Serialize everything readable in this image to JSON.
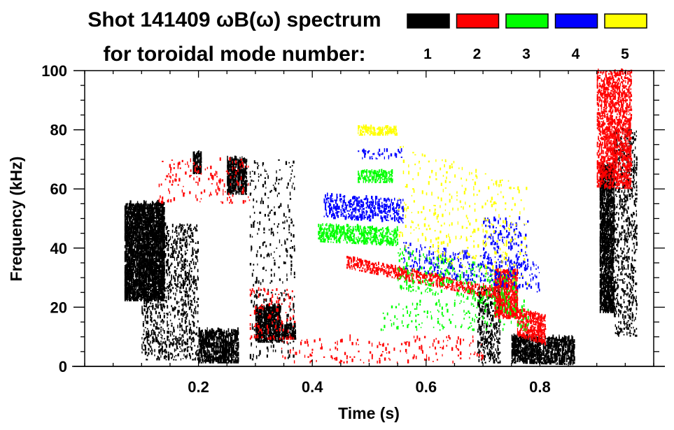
{
  "chart_data": {
    "type": "heatmap",
    "title_line1": "Shot 141409 ωB(ω) spectrum",
    "title_line2": "for toroidal mode number:",
    "xlabel": "Time (s)",
    "ylabel": "Frequency (kHz)",
    "xlim": [
      0.0,
      1.0
    ],
    "ylim": [
      0,
      100
    ],
    "x_major_ticks": [
      0.2,
      0.4,
      0.6,
      0.8
    ],
    "x_tick_labels": [
      "0.2",
      "0.4",
      "0.6",
      "0.8"
    ],
    "x_minor_step": 0.05,
    "y_major_ticks": [
      0,
      20,
      40,
      60,
      80,
      100
    ],
    "y_tick_labels": [
      "0",
      "20",
      "40",
      "60",
      "80",
      "100"
    ],
    "y_minor_step": 5,
    "grid": false,
    "legend": {
      "placement": "top-right",
      "entries": [
        {
          "label": "1",
          "n": 1,
          "color": "#000000"
        },
        {
          "label": "2",
          "n": 2,
          "color": "#ff0000"
        },
        {
          "label": "3",
          "n": 3,
          "color": "#00ff00"
        },
        {
          "label": "4",
          "n": 4,
          "color": "#0000ff"
        },
        {
          "label": "5",
          "n": 5,
          "color": "#ffff00"
        }
      ]
    },
    "features": [
      {
        "n": 1,
        "name": "n1-blob-early",
        "t": [
          0.07,
          0.14
        ],
        "f": [
          22,
          55
        ],
        "density": 0.75
      },
      {
        "n": 1,
        "name": "n1-streaks-early",
        "t": [
          0.1,
          0.2
        ],
        "f": [
          2,
          48
        ],
        "density": 0.18
      },
      {
        "n": 1,
        "name": "n1-low-0.2",
        "t": [
          0.2,
          0.27
        ],
        "f": [
          1,
          12
        ],
        "density": 0.6
      },
      {
        "n": 1,
        "name": "n1-patch-0.2-70",
        "t": [
          0.19,
          0.205
        ],
        "f": [
          65,
          72
        ],
        "density": 0.7
      },
      {
        "n": 1,
        "name": "n1-patch-0.25-65",
        "t": [
          0.25,
          0.285
        ],
        "f": [
          58,
          70
        ],
        "density": 0.6
      },
      {
        "n": 1,
        "name": "n1-low-0.32",
        "t": [
          0.3,
          0.345
        ],
        "f": [
          8,
          20
        ],
        "density": 0.7
      },
      {
        "n": 1,
        "name": "n1-low-0.35",
        "t": [
          0.345,
          0.37
        ],
        "f": [
          9,
          14
        ],
        "density": 0.6
      },
      {
        "n": 1,
        "name": "n1-streaks-0.3",
        "t": [
          0.29,
          0.37
        ],
        "f": [
          2,
          70
        ],
        "density": 0.05
      },
      {
        "n": 1,
        "name": "n1-late-0.7",
        "t": [
          0.69,
          0.73
        ],
        "f": [
          1,
          27
        ],
        "density": 0.25
      },
      {
        "n": 1,
        "name": "n1-late-ramp",
        "t": [
          0.75,
          0.86
        ],
        "f": [
          1,
          10
        ],
        "density": 0.55,
        "slope": -6
      },
      {
        "n": 1,
        "name": "n1-edge-0.91",
        "t": [
          0.905,
          0.93
        ],
        "f": [
          18,
          68
        ],
        "density": 0.65
      },
      {
        "n": 1,
        "name": "n1-edge-0.93",
        "t": [
          0.93,
          0.97
        ],
        "f": [
          10,
          80
        ],
        "density": 0.2
      },
      {
        "n": 2,
        "name": "n2-early-bits",
        "t": [
          0.13,
          0.29
        ],
        "f": [
          55,
          70
        ],
        "density": 0.05
      },
      {
        "n": 2,
        "name": "n2-0.3",
        "t": [
          0.29,
          0.37
        ],
        "f": [
          9,
          26
        ],
        "density": 0.08
      },
      {
        "n": 2,
        "name": "n2-band",
        "t": [
          0.46,
          0.72
        ],
        "f": [
          33,
          37
        ],
        "density": 0.35,
        "slope": -40
      },
      {
        "n": 2,
        "name": "n2-late-blob",
        "t": [
          0.72,
          0.76
        ],
        "f": [
          16,
          32
        ],
        "density": 0.6
      },
      {
        "n": 2,
        "name": "n2-late-trail",
        "t": [
          0.76,
          0.81
        ],
        "f": [
          10,
          20
        ],
        "density": 0.5,
        "slope": -60
      },
      {
        "n": 2,
        "name": "n2-low-scatter",
        "t": [
          0.34,
          0.7
        ],
        "f": [
          1,
          10
        ],
        "density": 0.04
      },
      {
        "n": 2,
        "name": "n2-edge-high",
        "t": [
          0.9,
          0.96
        ],
        "f": [
          60,
          100
        ],
        "density": 0.4
      },
      {
        "n": 3,
        "name": "n3-band-45",
        "t": [
          0.41,
          0.55
        ],
        "f": [
          42,
          48
        ],
        "density": 0.4,
        "slope": -10
      },
      {
        "n": 3,
        "name": "n3-band-65",
        "t": [
          0.48,
          0.54
        ],
        "f": [
          62,
          66
        ],
        "density": 0.4
      },
      {
        "n": 3,
        "name": "n3-trail",
        "t": [
          0.55,
          0.76
        ],
        "f": [
          26,
          40
        ],
        "density": 0.08,
        "slope": -40
      },
      {
        "n": 3,
        "name": "n3-low",
        "t": [
          0.52,
          0.78
        ],
        "f": [
          12,
          22
        ],
        "density": 0.05
      },
      {
        "n": 4,
        "name": "n4-band-55",
        "t": [
          0.42,
          0.56
        ],
        "f": [
          50,
          58
        ],
        "density": 0.3,
        "slope": -12
      },
      {
        "n": 4,
        "name": "n4-trail",
        "t": [
          0.56,
          0.8
        ],
        "f": [
          32,
          42
        ],
        "density": 0.1,
        "slope": -30
      },
      {
        "n": 4,
        "name": "n4-band-72",
        "t": [
          0.48,
          0.56
        ],
        "f": [
          70,
          73
        ],
        "density": 0.15
      },
      {
        "n": 4,
        "name": "n4-late",
        "t": [
          0.7,
          0.78
        ],
        "f": [
          33,
          50
        ],
        "density": 0.1
      },
      {
        "n": 5,
        "name": "n5-band-80",
        "t": [
          0.48,
          0.55
        ],
        "f": [
          78,
          81
        ],
        "density": 0.45
      },
      {
        "n": 5,
        "name": "n5-trail",
        "t": [
          0.55,
          0.78
        ],
        "f": [
          40,
          75
        ],
        "density": 0.03,
        "slope": -60
      }
    ]
  }
}
